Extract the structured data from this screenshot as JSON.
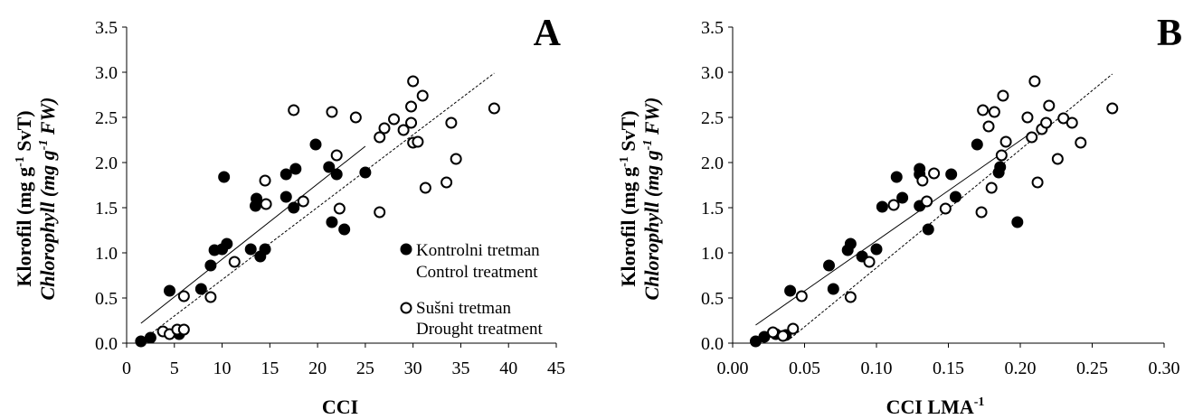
{
  "chart_data": [
    {
      "type": "scatter",
      "panel_label": "A",
      "xlabel": "CCI",
      "ylabel_line1": "Klorofil (mg g",
      "ylabel_line1_sup": "-1",
      "ylabel_line1_end": " SvT)",
      "ylabel_line2": "Chlorophyll (mg g",
      "ylabel_line2_sup": "-1",
      "ylabel_line2_end": " FW)",
      "xlim": [
        0,
        45
      ],
      "ylim": [
        0,
        3.5
      ],
      "xticks": [
        0,
        5,
        10,
        15,
        20,
        25,
        30,
        35,
        40,
        45
      ],
      "xtick_labels": [
        "0",
        "5",
        "10",
        "15",
        "20",
        "25",
        "30",
        "35",
        "40",
        "45"
      ],
      "yticks": [
        0,
        0.5,
        1.0,
        1.5,
        2.0,
        2.5,
        3.0,
        3.5
      ],
      "ytick_labels": [
        "0.0",
        "0.5",
        "1.0",
        "1.5",
        "2.0",
        "2.5",
        "3.0",
        "3.5"
      ],
      "legend": {
        "placement": "inside-bottom-right",
        "entries": [
          {
            "marker": "filled",
            "line1": "Kontrolni tretman",
            "line2": "Control treatment"
          },
          {
            "marker": "open",
            "line1": "Sušni tretman",
            "line2": "Drought treatment"
          }
        ]
      },
      "series": [
        {
          "marker": "filled",
          "points": [
            [
              1.5,
              0.02
            ],
            [
              2.5,
              0.06
            ],
            [
              4.5,
              0.58
            ],
            [
              5.5,
              0.1
            ],
            [
              7.8,
              0.6
            ],
            [
              8.8,
              0.86
            ],
            [
              9.2,
              1.03
            ],
            [
              10.2,
              1.84
            ],
            [
              10.0,
              1.04
            ],
            [
              10.5,
              1.1
            ],
            [
              13.0,
              1.04
            ],
            [
              13.5,
              1.52
            ],
            [
              13.6,
              1.6
            ],
            [
              14.0,
              0.96
            ],
            [
              14.5,
              1.04
            ],
            [
              16.7,
              1.87
            ],
            [
              16.7,
              1.62
            ],
            [
              17.5,
              1.5
            ],
            [
              17.7,
              1.93
            ],
            [
              19.8,
              2.2
            ],
            [
              21.2,
              1.95
            ],
            [
              21.5,
              1.34
            ],
            [
              22.0,
              1.87
            ],
            [
              25.0,
              1.89
            ],
            [
              22.8,
              1.26
            ]
          ],
          "fit": [
            [
              1.5,
              0.22
            ],
            [
              25.0,
              2.18
            ]
          ],
          "fit_style": "solid"
        },
        {
          "marker": "open",
          "points": [
            [
              3.8,
              0.13
            ],
            [
              4.5,
              0.1
            ],
            [
              5.3,
              0.15
            ],
            [
              6.0,
              0.15
            ],
            [
              6.0,
              0.52
            ],
            [
              8.8,
              0.51
            ],
            [
              11.3,
              0.9
            ],
            [
              14.5,
              1.8
            ],
            [
              14.6,
              1.54
            ],
            [
              17.5,
              2.58
            ],
            [
              18.5,
              1.57
            ],
            [
              21.5,
              2.56
            ],
            [
              22.0,
              2.08
            ],
            [
              22.3,
              1.49
            ],
            [
              24.0,
              2.5
            ],
            [
              26.5,
              1.45
            ],
            [
              26.5,
              2.28
            ],
            [
              27.0,
              2.38
            ],
            [
              28.0,
              2.48
            ],
            [
              29.0,
              2.36
            ],
            [
              29.8,
              2.62
            ],
            [
              29.8,
              2.44
            ],
            [
              30.0,
              2.22
            ],
            [
              30.0,
              2.9
            ],
            [
              30.5,
              2.23
            ],
            [
              31.0,
              2.74
            ],
            [
              31.3,
              1.72
            ],
            [
              33.5,
              1.78
            ],
            [
              34.0,
              2.44
            ],
            [
              34.5,
              2.04
            ],
            [
              38.5,
              2.6
            ]
          ],
          "fit": [
            [
              1.5,
              0.02
            ],
            [
              38.5,
              2.99
            ]
          ],
          "fit_style": "dashed"
        }
      ]
    },
    {
      "type": "scatter",
      "panel_label": "B",
      "xlabel": "CCI LMA",
      "xlabel_sup": "-1",
      "ylabel_line1": "Klorofil (mg g",
      "ylabel_line1_sup": "-1",
      "ylabel_line1_end": " SvT)",
      "ylabel_line2": "Chlorophyll (mg g",
      "ylabel_line2_sup": "-1",
      "ylabel_line2_end": " FW)",
      "xlim": [
        0,
        0.3
      ],
      "ylim": [
        0,
        3.5
      ],
      "xticks": [
        0,
        0.05,
        0.1,
        0.15,
        0.2,
        0.25,
        0.3
      ],
      "xtick_labels": [
        "0.00",
        "0.05",
        "0.10",
        "0.15",
        "0.20",
        "0.25",
        "0.30"
      ],
      "yticks": [
        0,
        0.5,
        1.0,
        1.5,
        2.0,
        2.5,
        3.0,
        3.5
      ],
      "ytick_labels": [
        "0.0",
        "0.5",
        "1.0",
        "1.5",
        "2.0",
        "2.5",
        "3.0",
        "3.5"
      ],
      "series": [
        {
          "marker": "filled",
          "points": [
            [
              0.016,
              0.02
            ],
            [
              0.022,
              0.07
            ],
            [
              0.03,
              0.1
            ],
            [
              0.037,
              0.09
            ],
            [
              0.04,
              0.58
            ],
            [
              0.067,
              0.86
            ],
            [
              0.07,
              0.6
            ],
            [
              0.08,
              1.03
            ],
            [
              0.082,
              1.1
            ],
            [
              0.09,
              0.96
            ],
            [
              0.1,
              1.04
            ],
            [
              0.104,
              1.51
            ],
            [
              0.114,
              1.84
            ],
            [
              0.118,
              1.61
            ],
            [
              0.13,
              1.93
            ],
            [
              0.13,
              1.87
            ],
            [
              0.13,
              1.52
            ],
            [
              0.136,
              1.26
            ],
            [
              0.152,
              1.87
            ],
            [
              0.155,
              1.62
            ],
            [
              0.17,
              2.2
            ],
            [
              0.185,
              1.89
            ],
            [
              0.186,
              1.95
            ],
            [
              0.198,
              1.34
            ]
          ],
          "fit": [
            [
              0.016,
              0.2
            ],
            [
              0.205,
              2.3
            ]
          ],
          "fit_style": "solid"
        },
        {
          "marker": "open",
          "points": [
            [
              0.028,
              0.12
            ],
            [
              0.035,
              0.08
            ],
            [
              0.042,
              0.16
            ],
            [
              0.048,
              0.52
            ],
            [
              0.082,
              0.51
            ],
            [
              0.095,
              0.9
            ],
            [
              0.112,
              1.53
            ],
            [
              0.132,
              1.8
            ],
            [
              0.135,
              1.57
            ],
            [
              0.14,
              1.88
            ],
            [
              0.148,
              1.49
            ],
            [
              0.173,
              1.45
            ],
            [
              0.174,
              2.58
            ],
            [
              0.178,
              2.4
            ],
            [
              0.18,
              1.72
            ],
            [
              0.182,
              2.56
            ],
            [
              0.187,
              2.08
            ],
            [
              0.188,
              2.74
            ],
            [
              0.19,
              2.23
            ],
            [
              0.205,
              2.5
            ],
            [
              0.208,
              2.28
            ],
            [
              0.21,
              2.9
            ],
            [
              0.212,
              1.78
            ],
            [
              0.215,
              2.37
            ],
            [
              0.218,
              2.44
            ],
            [
              0.22,
              2.63
            ],
            [
              0.226,
              2.04
            ],
            [
              0.23,
              2.49
            ],
            [
              0.236,
              2.44
            ],
            [
              0.242,
              2.22
            ],
            [
              0.264,
              2.6
            ]
          ],
          "fit": [
            [
              0.04,
              0.05
            ],
            [
              0.264,
              2.98
            ]
          ],
          "fit_style": "dashed"
        }
      ]
    }
  ]
}
